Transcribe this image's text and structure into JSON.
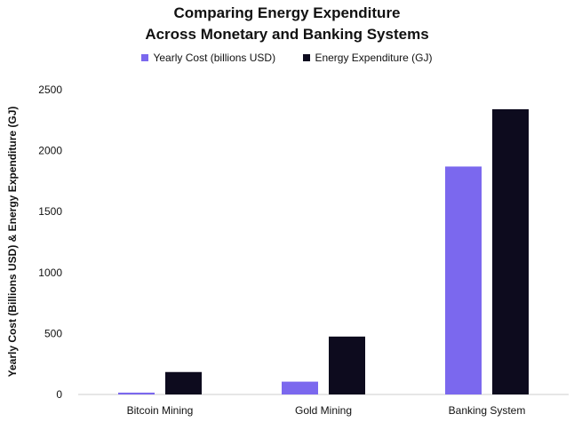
{
  "chart_data": {
    "type": "bar",
    "title_line1": "Comparing Energy Expenditure",
    "title_line2": "Across Monetary and Banking Systems",
    "xlabel": "",
    "ylabel": "Yearly Cost (Billions USD) & Energy Expenditure (GJ)",
    "categories": [
      "Bitcoin Mining",
      "Gold Mining",
      "Banking System"
    ],
    "series": [
      {
        "name": "Yearly Cost (billions USD)",
        "color": "#7b68ee",
        "values": [
          15,
          105,
          1870
        ]
      },
      {
        "name": "Energy Expenditure (GJ)",
        "color": "#0d0b1e",
        "values": [
          184,
          475,
          2340
        ]
      }
    ],
    "ylim": [
      0,
      2500
    ],
    "yticks": [
      0,
      500,
      1000,
      1500,
      2000,
      2500
    ],
    "grid": false,
    "legend_position": "top-center"
  }
}
